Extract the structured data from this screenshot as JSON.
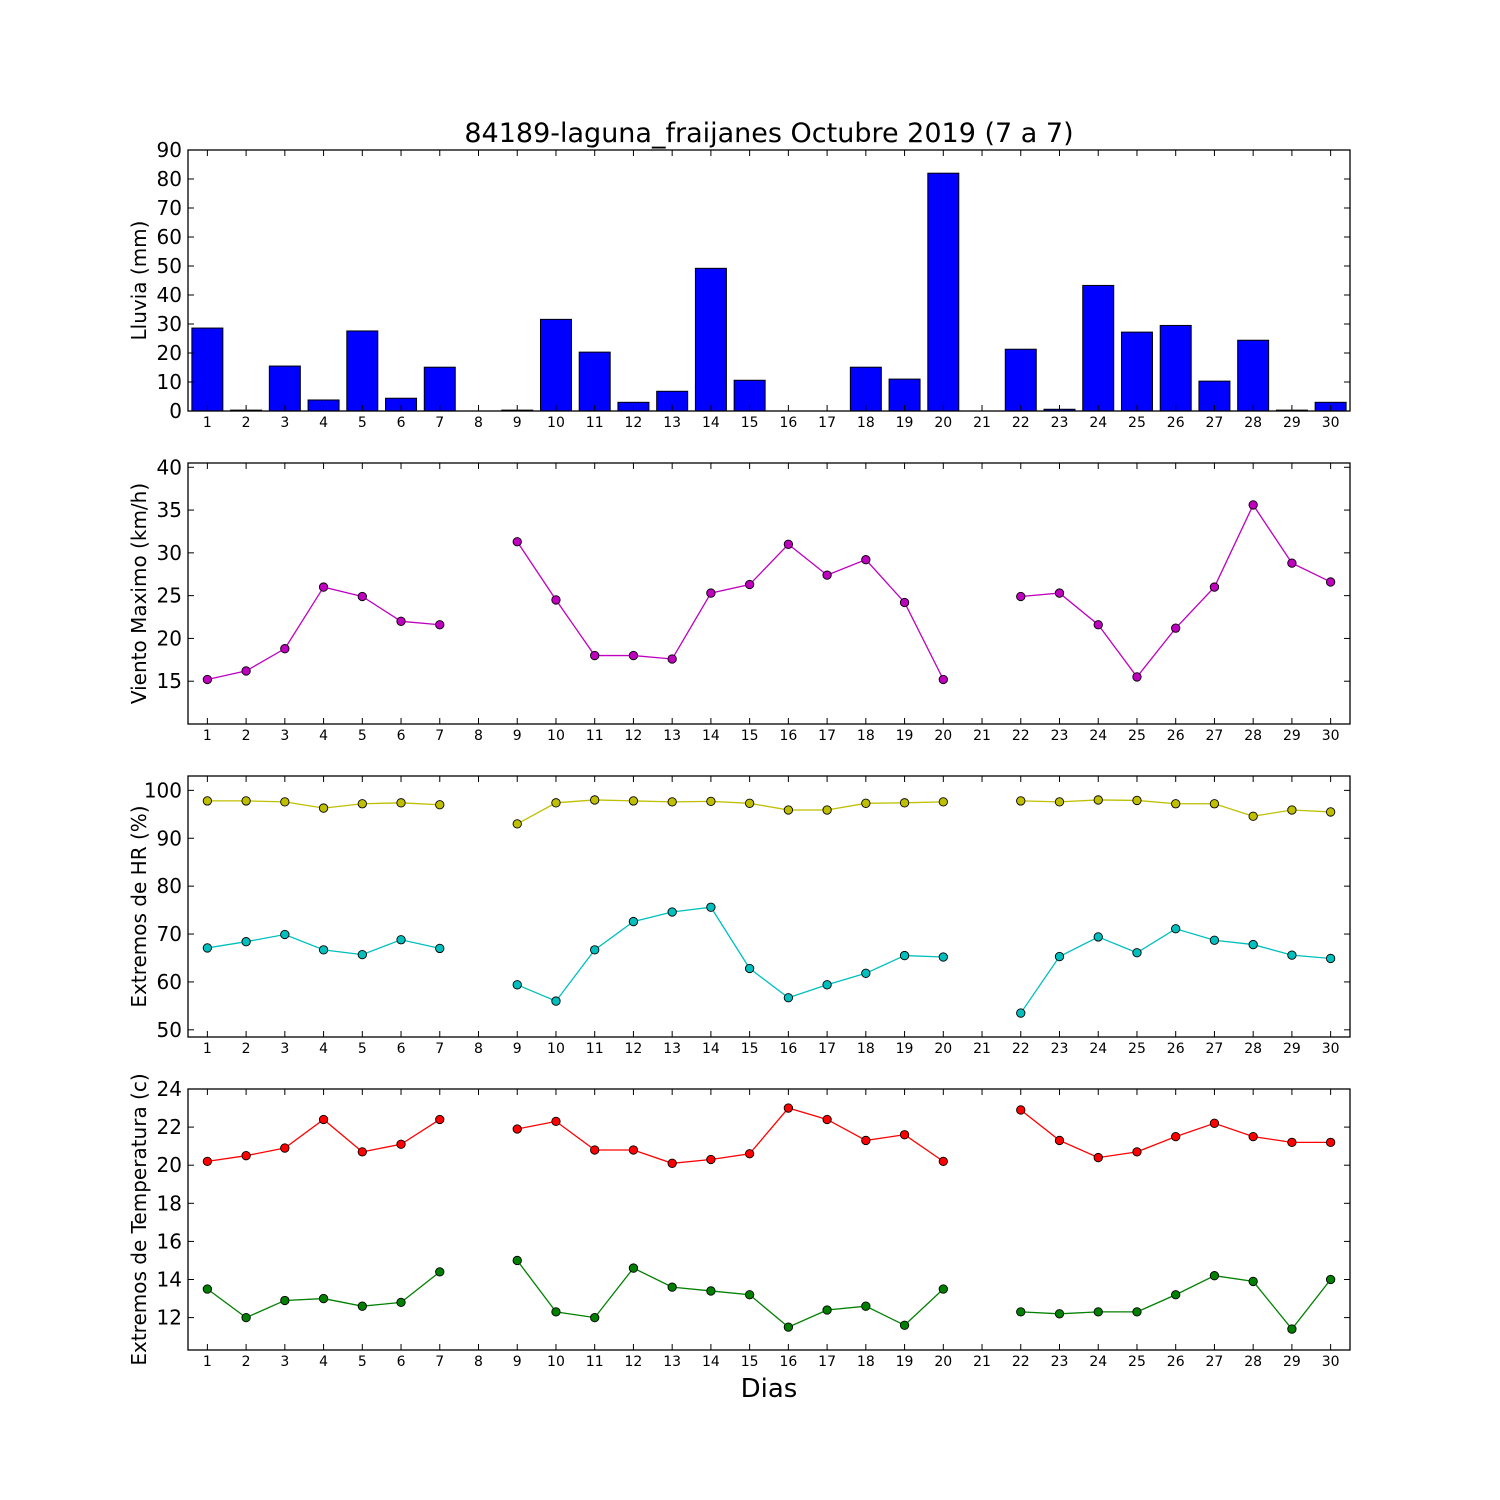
{
  "title": "84189-laguna_fraijanes Octubre 2019  (7 a 7)",
  "xlabel": "Dias",
  "colors": {
    "bar_fill": "#0000ff",
    "magenta": "#bf00bf",
    "yellow": "#bfbf00",
    "cyan": "#00bfbf",
    "red": "#ff0000",
    "green": "#008000"
  },
  "chart_data": [
    {
      "type": "bar",
      "ylabel": "Lluvia (mm)",
      "x": [
        1,
        2,
        3,
        4,
        5,
        6,
        7,
        8,
        9,
        10,
        11,
        12,
        13,
        14,
        15,
        16,
        17,
        18,
        19,
        20,
        21,
        22,
        23,
        24,
        25,
        26,
        27,
        28,
        29,
        30
      ],
      "xlim": [
        0.5,
        30.5
      ],
      "ylim": [
        0,
        90
      ],
      "yticks": [
        0,
        10,
        20,
        30,
        40,
        50,
        60,
        70,
        80,
        90
      ],
      "series": [
        {
          "values": [
            28.6,
            0.3,
            15.5,
            3.8,
            27.6,
            4.4,
            15.1,
            null,
            0.3,
            31.6,
            20.3,
            3.0,
            6.8,
            49.2,
            10.6,
            0.0,
            0.0,
            15.1,
            11.0,
            82.0,
            null,
            21.3,
            0.6,
            43.3,
            27.2,
            29.5,
            10.3,
            24.4,
            0.3,
            3.0
          ],
          "color_key": "bar_fill"
        }
      ]
    },
    {
      "type": "line",
      "ylabel": "Viento Maximo (km/h)",
      "x": [
        1,
        2,
        3,
        4,
        5,
        6,
        7,
        8,
        9,
        10,
        11,
        12,
        13,
        14,
        15,
        16,
        17,
        18,
        19,
        20,
        21,
        22,
        23,
        24,
        25,
        26,
        27,
        28,
        29,
        30
      ],
      "xlim": [
        0.5,
        30.5
      ],
      "ylim": [
        10,
        40.5
      ],
      "yticks": [
        15,
        20,
        25,
        30,
        35,
        40
      ],
      "series": [
        {
          "values": [
            15.2,
            16.2,
            18.8,
            26.0,
            24.9,
            22.0,
            21.6,
            null,
            31.3,
            24.5,
            18.0,
            18.0,
            17.6,
            25.3,
            26.3,
            31.0,
            27.4,
            29.2,
            24.2,
            15.2,
            null,
            24.9,
            25.3,
            21.6,
            15.5,
            21.2,
            26.0,
            35.6,
            28.8,
            26.6
          ],
          "color_key": "magenta"
        }
      ]
    },
    {
      "type": "line",
      "ylabel": "Extremos de HR (%)",
      "x": [
        1,
        2,
        3,
        4,
        5,
        6,
        7,
        8,
        9,
        10,
        11,
        12,
        13,
        14,
        15,
        16,
        17,
        18,
        19,
        20,
        21,
        22,
        23,
        24,
        25,
        26,
        27,
        28,
        29,
        30
      ],
      "xlim": [
        0.5,
        30.5
      ],
      "ylim": [
        48.5,
        103
      ],
      "yticks": [
        50,
        60,
        70,
        80,
        90,
        100
      ],
      "series": [
        {
          "values": [
            97.8,
            97.8,
            97.6,
            96.3,
            97.2,
            97.4,
            97.0,
            null,
            93.0,
            97.4,
            98.0,
            97.8,
            97.6,
            97.7,
            97.3,
            95.9,
            95.9,
            97.3,
            97.4,
            97.6,
            null,
            97.8,
            97.6,
            98.0,
            97.9,
            97.2,
            97.2,
            94.6,
            95.9,
            95.5
          ],
          "color_key": "yellow"
        },
        {
          "values": [
            67.1,
            68.4,
            69.9,
            66.7,
            65.7,
            68.8,
            67.0,
            null,
            59.4,
            56.0,
            66.7,
            72.6,
            74.6,
            75.6,
            62.8,
            56.7,
            59.4,
            61.8,
            65.5,
            65.2,
            null,
            53.5,
            65.3,
            69.4,
            66.1,
            71.1,
            68.7,
            67.8,
            65.6,
            64.9
          ],
          "color_key": "cyan"
        }
      ]
    },
    {
      "type": "line",
      "ylabel": "Extremos de Temperatura (c)",
      "x": [
        1,
        2,
        3,
        4,
        5,
        6,
        7,
        8,
        9,
        10,
        11,
        12,
        13,
        14,
        15,
        16,
        17,
        18,
        19,
        20,
        21,
        22,
        23,
        24,
        25,
        26,
        27,
        28,
        29,
        30
      ],
      "xlim": [
        0.5,
        30.5
      ],
      "ylim": [
        10.3,
        24
      ],
      "yticks": [
        12,
        14,
        16,
        18,
        20,
        22,
        24
      ],
      "series": [
        {
          "values": [
            20.2,
            20.5,
            20.9,
            22.4,
            20.7,
            21.1,
            22.4,
            null,
            21.9,
            22.3,
            20.8,
            20.8,
            20.1,
            20.3,
            20.6,
            23.0,
            22.4,
            21.3,
            21.6,
            20.2,
            null,
            22.9,
            21.3,
            20.4,
            20.7,
            21.5,
            22.2,
            21.5,
            21.2,
            21.2
          ],
          "color_key": "red"
        },
        {
          "values": [
            13.5,
            12.0,
            12.9,
            13.0,
            12.6,
            12.8,
            14.4,
            null,
            15.0,
            12.3,
            12.0,
            14.6,
            13.6,
            13.4,
            13.2,
            11.5,
            12.4,
            12.6,
            11.6,
            13.5,
            null,
            12.3,
            12.2,
            12.3,
            12.3,
            13.2,
            14.2,
            13.9,
            11.4,
            14.0
          ],
          "color_key": "green"
        }
      ]
    }
  ]
}
